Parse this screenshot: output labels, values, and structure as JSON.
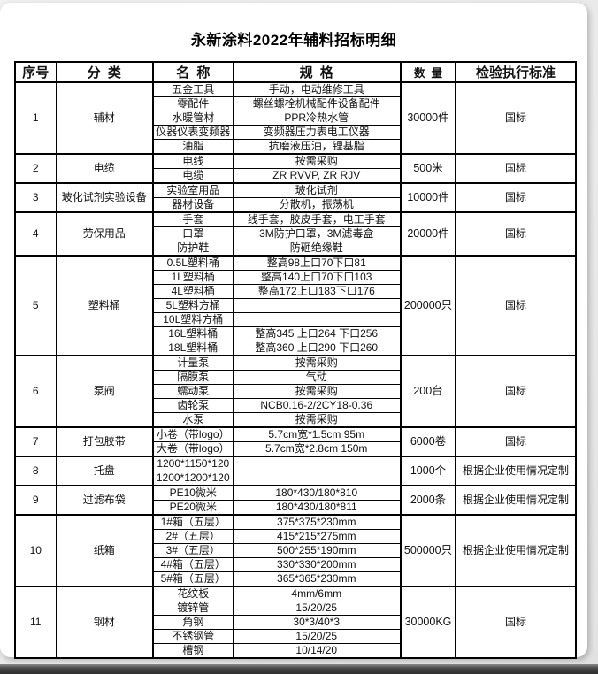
{
  "page": {
    "title": "永新涂料2022年辅料招标明细"
  },
  "table": {
    "headers": [
      "序号",
      "分  类",
      "名  称",
      "规  格",
      "数  量",
      "检验执行标准"
    ],
    "sections": [
      {
        "no": "1",
        "category": "辅材",
        "quantity": "30000件",
        "standard": "国标",
        "items": [
          {
            "name": "五金工具",
            "spec": "手动，电动维修工具"
          },
          {
            "name": "零配件",
            "spec": "螺丝螺栓机械配件设备配件"
          },
          {
            "name": "水暖管材",
            "spec": "PPR冷热水管"
          },
          {
            "name": "仪器仪表变频器",
            "spec": "变频器压力表电工仪器"
          },
          {
            "name": "油脂",
            "spec": "抗磨液压油，锂基脂"
          }
        ]
      },
      {
        "no": "2",
        "category": "电缆",
        "quantity": "500米",
        "standard": "国标",
        "items": [
          {
            "name": "电线",
            "spec": "按需采购"
          },
          {
            "name": "电缆",
            "spec": "ZR RVVP, ZR RJV"
          }
        ]
      },
      {
        "no": "3",
        "category": "玻化试剂实验设备",
        "quantity": "10000件",
        "standard": "国标",
        "items": [
          {
            "name": "实验室用品",
            "spec": "玻化试剂"
          },
          {
            "name": "器材设备",
            "spec": "分散机，振荡机"
          }
        ]
      },
      {
        "no": "4",
        "category": "劳保用品",
        "quantity": "20000件",
        "standard": "国标",
        "items": [
          {
            "name": "手套",
            "spec": "线手套，胶皮手套，电工手套"
          },
          {
            "name": "口罩",
            "spec": "3M防护口罩，3M滤毒盒"
          },
          {
            "name": "防护鞋",
            "spec": "防砸绝缘鞋"
          }
        ]
      },
      {
        "no": "5",
        "category": "塑料桶",
        "quantity": "200000只",
        "standard": "国标",
        "items": [
          {
            "name": "0.5L塑料桶",
            "spec": "整高98上口70下口81"
          },
          {
            "name": "1L塑料桶",
            "spec": "整高140上口70下口103"
          },
          {
            "name": "4L塑料桶",
            "spec": "整高172上口183下口176"
          },
          {
            "name": "5L塑料方桶",
            "spec": ""
          },
          {
            "name": "10L塑料方桶",
            "spec": ""
          },
          {
            "name": "16L塑料桶",
            "spec": "整高345 上口264 下口256"
          },
          {
            "name": "18L塑料桶",
            "spec": "整高360 上口290 下口260"
          }
        ]
      },
      {
        "no": "6",
        "category": "泵阀",
        "quantity": "200台",
        "standard": "国标",
        "items": [
          {
            "name": "计量泵",
            "spec": "按需采购"
          },
          {
            "name": "隔膜泵",
            "spec": "气动"
          },
          {
            "name": "蠕动泵",
            "spec": "按需采购"
          },
          {
            "name": "齿轮泵",
            "spec": "NCB0.16-2/2CY18-0.36"
          },
          {
            "name": "水泵",
            "spec": "按需采购"
          }
        ]
      },
      {
        "no": "7",
        "category": "打包胶带",
        "quantity": "6000卷",
        "standard": "国标",
        "items": [
          {
            "name": "小卷（带logo）",
            "spec": "5.7cm宽*1.5cm 95m"
          },
          {
            "name": "大卷（带logo）",
            "spec": "5.7cm宽*2.8cm 150m"
          }
        ]
      },
      {
        "no": "8",
        "category": "托盘",
        "quantity": "1000个",
        "standard": "根据企业使用情况定制",
        "items": [
          {
            "name": "1200*1150*120",
            "spec": ""
          },
          {
            "name": "1200*1200*120",
            "spec": ""
          }
        ]
      },
      {
        "no": "9",
        "category": "过滤布袋",
        "quantity": "2000条",
        "standard": "根据企业使用情况定制",
        "items": [
          {
            "name": "PE10微米",
            "spec": "180*430/180*810"
          },
          {
            "name": "PE20微米",
            "spec": "180*430/180*811"
          }
        ]
      },
      {
        "no": "10",
        "category": "纸箱",
        "quantity": "500000只",
        "standard": "根据企业使用情况定制",
        "items": [
          {
            "name": "1#箱（五层）",
            "spec": "375*375*230mm"
          },
          {
            "name": "2#（五层）",
            "spec": "415*215*275mm"
          },
          {
            "name": "3#（五层）",
            "spec": "500*255*190mm"
          },
          {
            "name": "4#箱（五层）",
            "spec": "330*330*200mm"
          },
          {
            "name": "5#箱（五层）",
            "spec": "365*365*230mm"
          }
        ]
      },
      {
        "no": "11",
        "category": "钢材",
        "quantity": "30000KG",
        "standard": "国标",
        "items": [
          {
            "name": "花纹板",
            "spec": "4mm/6mm"
          },
          {
            "name": "镀锌管",
            "spec": "15/20/25"
          },
          {
            "name": "角钢",
            "spec": "30*3/40*3"
          },
          {
            "name": "不锈钢管",
            "spec": "15/20/25"
          },
          {
            "name": "槽钢",
            "spec": "10/14/20"
          }
        ]
      }
    ]
  }
}
